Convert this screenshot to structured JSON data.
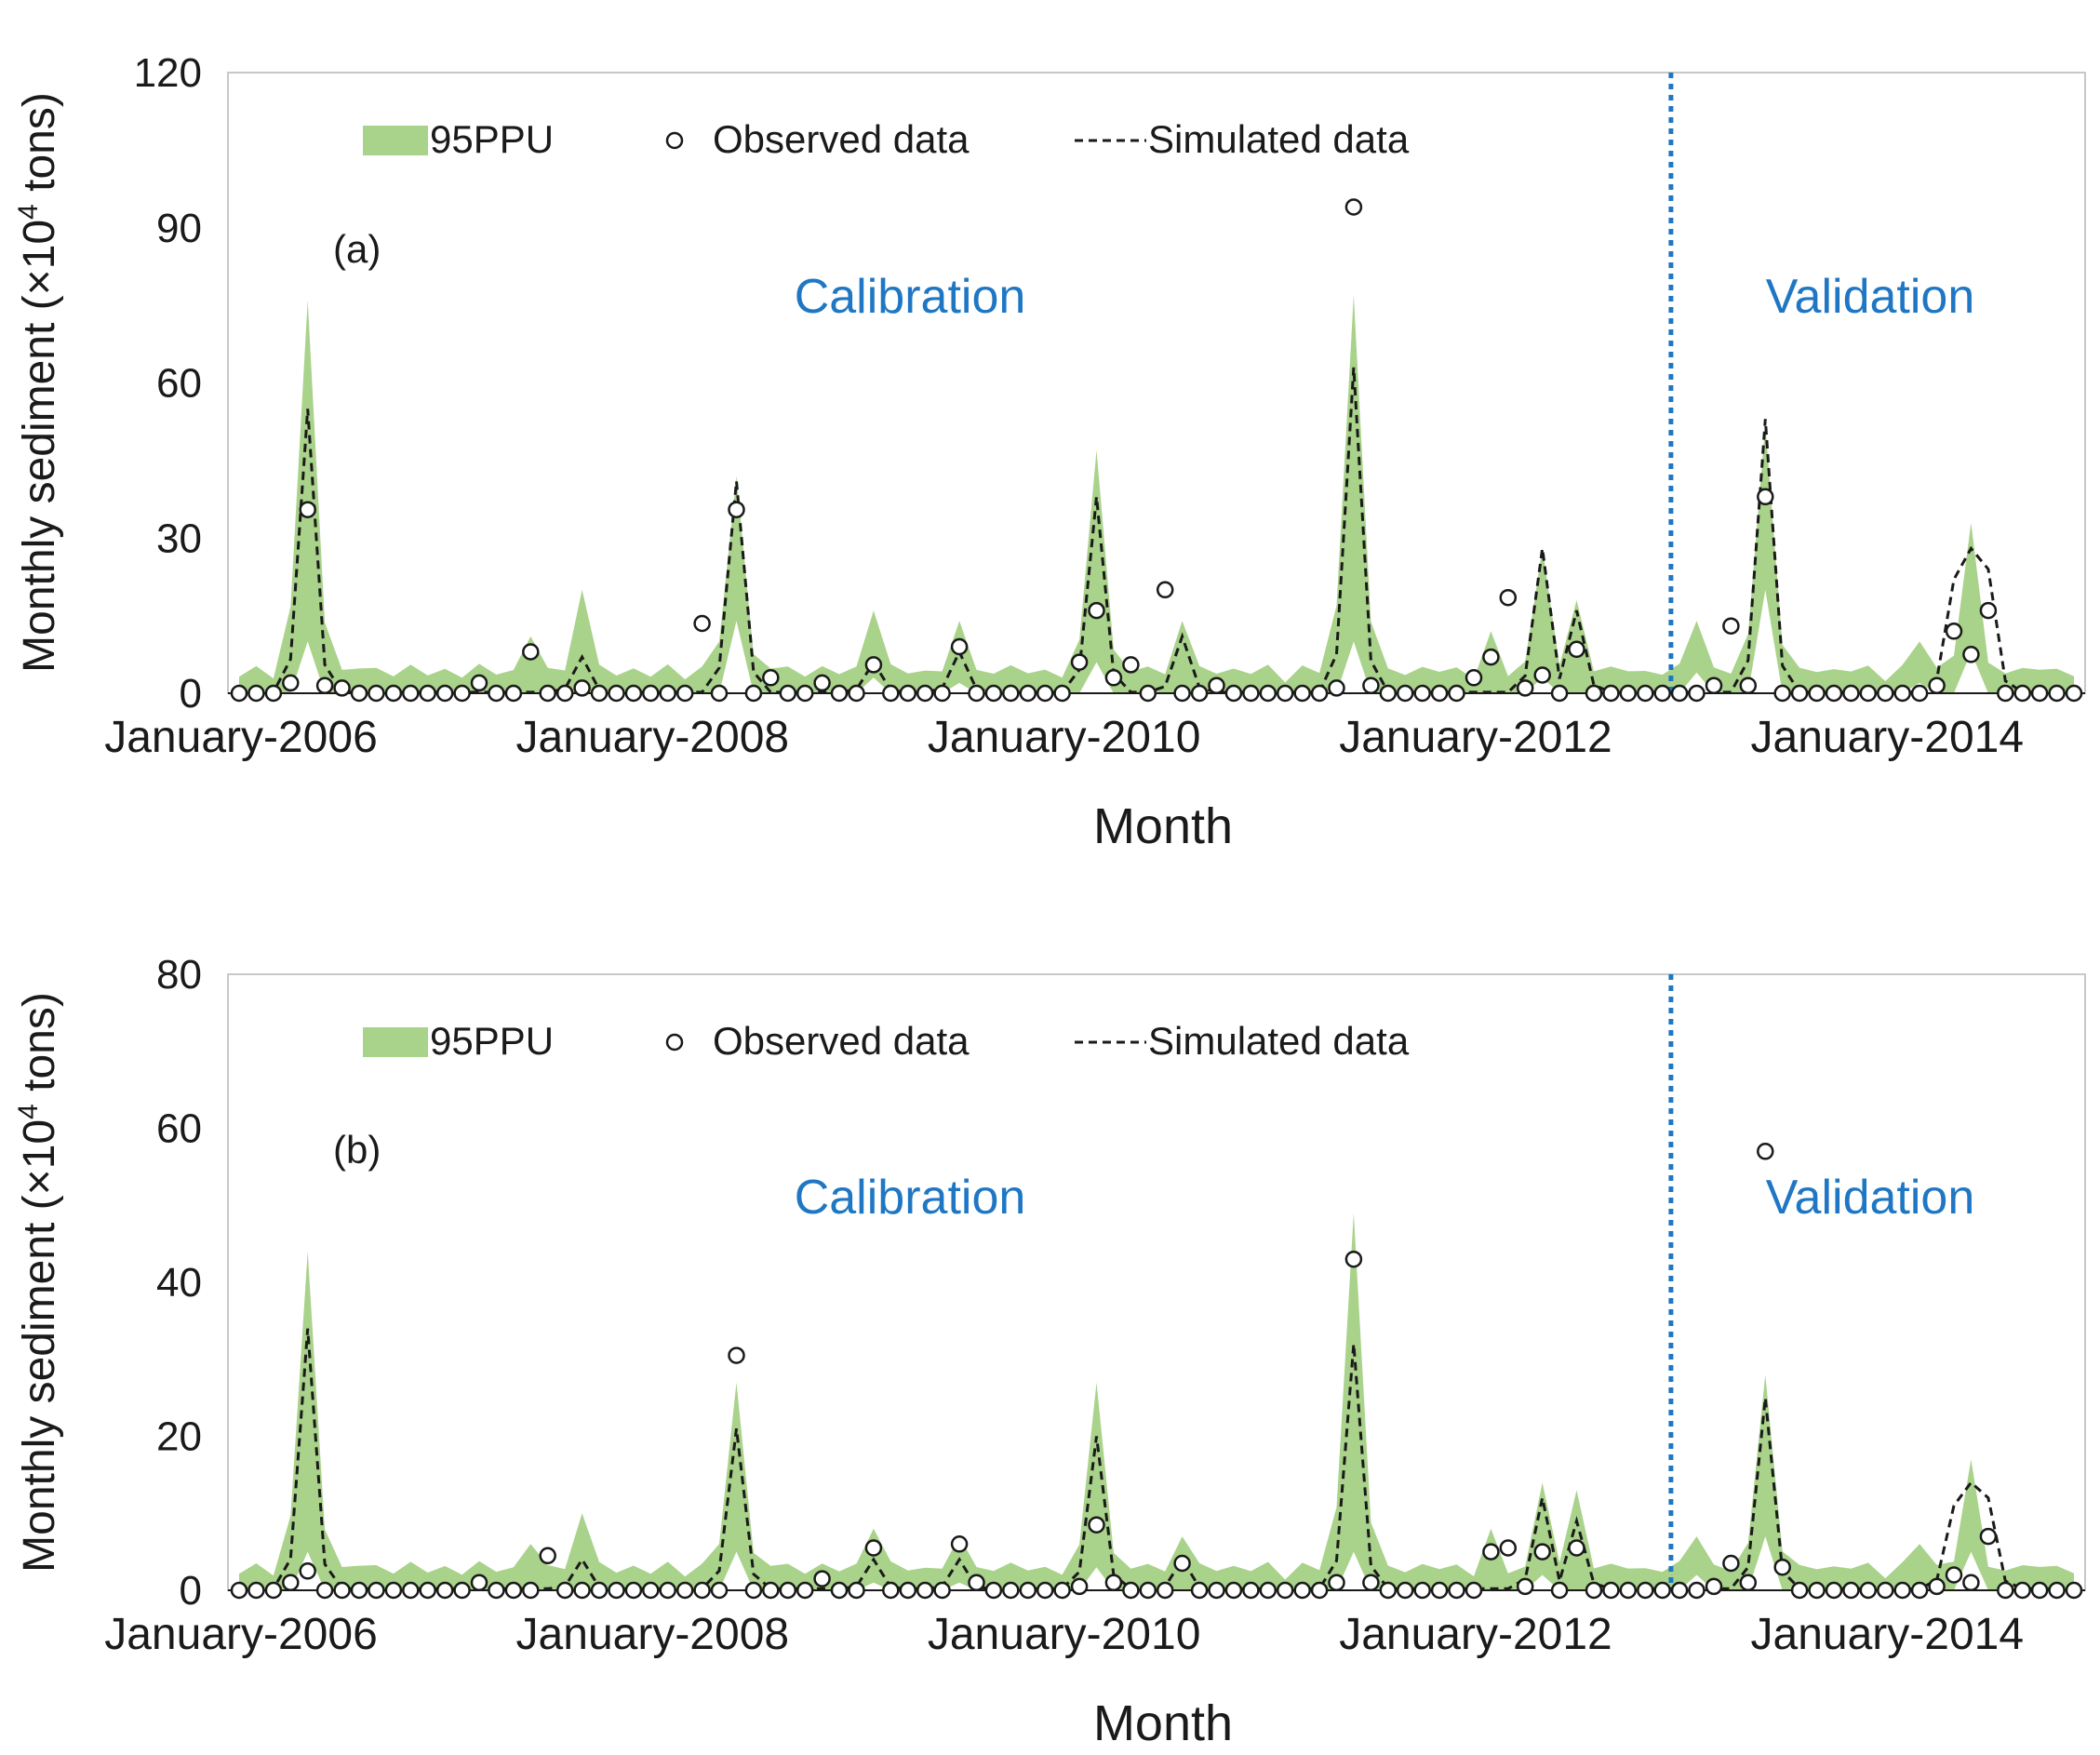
{
  "figure": {
    "x_start_label_year": 2006,
    "panel_label_a": "(a)",
    "panel_label_b": "(b)"
  },
  "colors": {
    "band": "#a9d28a",
    "sim_line": "#1a1a1a",
    "divider": "#1f77c4",
    "period_text": "#1f77c4",
    "text": "#1a1a1a"
  },
  "chart_data": [
    {
      "type": "line",
      "panel": "(a)",
      "title": "",
      "xlabel": "Month",
      "ylabel_prefix": "Monthly sediment (",
      "ylabel_unit": "×10",
      "ylabel_exp": "4",
      "ylabel_suffix": " tons)",
      "ylim": [
        0,
        120
      ],
      "yticks": [
        0,
        30,
        60,
        90,
        120
      ],
      "xtick_labels": [
        "January-2006",
        "January-2008",
        "January-2010",
        "January-2012",
        "January-2014"
      ],
      "xtick_months": [
        0,
        24,
        48,
        72,
        96
      ],
      "n_months": 108,
      "split_month": 83.5,
      "period_labels": [
        "Calibration",
        "Validation"
      ],
      "legend": [
        "95PPU",
        "Observed data",
        "Simulated data"
      ],
      "series": [
        {
          "name": "95PPU",
          "kind": "band",
          "peaks": [
            [
              4,
              76,
              10
            ],
            [
              17,
              11,
              0
            ],
            [
              20,
              20,
              0
            ],
            [
              28,
              10,
              0
            ],
            [
              29,
              42,
              14
            ],
            [
              37,
              16,
              3
            ],
            [
              42,
              14,
              2
            ],
            [
              50,
              47,
              6
            ],
            [
              55,
              14,
              0
            ],
            [
              65,
              77,
              10
            ],
            [
              73,
              12,
              0
            ],
            [
              76,
              28,
              3
            ],
            [
              78,
              18,
              0
            ],
            [
              85,
              14,
              4
            ],
            [
              89,
              52,
              20
            ],
            [
              98,
              10,
              2
            ],
            [
              101,
              33,
              8
            ]
          ]
        },
        {
          "name": "Simulated data",
          "kind": "line",
          "peaks": [
            [
              4,
              55
            ],
            [
              20,
              7
            ],
            [
              29,
              41
            ],
            [
              37,
              6
            ],
            [
              42,
              8
            ],
            [
              50,
              38
            ],
            [
              55,
              11
            ],
            [
              65,
              63
            ],
            [
              76,
              28
            ],
            [
              78,
              16
            ],
            [
              89,
              53
            ],
            [
              100,
              22
            ],
            [
              101,
              28
            ],
            [
              102,
              24
            ]
          ]
        },
        {
          "name": "Observed data",
          "kind": "points",
          "nonzero": [
            [
              3,
              2
            ],
            [
              4,
              35.5
            ],
            [
              5,
              1.5
            ],
            [
              6,
              1
            ],
            [
              14,
              2
            ],
            [
              17,
              8
            ],
            [
              20,
              1
            ],
            [
              27,
              13.5
            ],
            [
              29,
              35.5
            ],
            [
              31,
              3
            ],
            [
              34,
              2
            ],
            [
              37,
              5.5
            ],
            [
              42,
              9
            ],
            [
              49,
              6
            ],
            [
              50,
              16
            ],
            [
              51,
              3
            ],
            [
              52,
              5.5
            ],
            [
              54,
              20
            ],
            [
              57,
              1.5
            ],
            [
              64,
              1
            ],
            [
              65,
              94
            ],
            [
              66,
              1.5
            ],
            [
              72,
              3
            ],
            [
              73,
              7
            ],
            [
              74,
              18.5
            ],
            [
              75,
              1
            ],
            [
              76,
              3.5
            ],
            [
              78,
              8.5
            ],
            [
              86,
              1.5
            ],
            [
              87,
              13
            ],
            [
              88,
              1.5
            ],
            [
              89,
              38
            ],
            [
              99,
              1.5
            ],
            [
              100,
              12
            ],
            [
              101,
              7.5
            ],
            [
              102,
              16
            ]
          ]
        }
      ]
    },
    {
      "type": "line",
      "panel": "(b)",
      "title": "",
      "xlabel": "Month",
      "ylabel_prefix": "Monthly sediment (",
      "ylabel_unit": "×10",
      "ylabel_exp": "4",
      "ylabel_suffix": " tons)",
      "ylim": [
        0,
        80
      ],
      "yticks": [
        0,
        20,
        40,
        60,
        80
      ],
      "xtick_labels": [
        "January-2006",
        "January-2008",
        "January-2010",
        "January-2012",
        "January-2014"
      ],
      "xtick_months": [
        0,
        24,
        48,
        72,
        96
      ],
      "n_months": 108,
      "split_month": 83.5,
      "period_labels": [
        "Calibration",
        "Validation"
      ],
      "legend": [
        "95PPU",
        "Observed data",
        "Simulated data"
      ],
      "series": [
        {
          "name": "95PPU",
          "kind": "band",
          "peaks": [
            [
              4,
              44,
              5
            ],
            [
              17,
              6,
              0
            ],
            [
              20,
              10,
              0
            ],
            [
              28,
              6,
              0
            ],
            [
              29,
              27,
              5
            ],
            [
              37,
              8,
              1
            ],
            [
              42,
              7,
              1
            ],
            [
              50,
              27,
              3
            ],
            [
              55,
              7,
              0
            ],
            [
              65,
              49,
              5
            ],
            [
              73,
              8,
              0
            ],
            [
              76,
              14,
              2
            ],
            [
              78,
              13,
              0
            ],
            [
              85,
              7,
              2
            ],
            [
              89,
              28,
              7
            ],
            [
              98,
              6,
              1
            ],
            [
              101,
              17,
              5
            ]
          ]
        },
        {
          "name": "Simulated data",
          "kind": "line",
          "peaks": [
            [
              4,
              34
            ],
            [
              20,
              4
            ],
            [
              29,
              21
            ],
            [
              37,
              4
            ],
            [
              42,
              4
            ],
            [
              50,
              20
            ],
            [
              55,
              4
            ],
            [
              65,
              32
            ],
            [
              76,
              12
            ],
            [
              78,
              9
            ],
            [
              89,
              25
            ],
            [
              100,
              11
            ],
            [
              101,
              14
            ],
            [
              102,
              12
            ]
          ]
        },
        {
          "name": "Observed data",
          "kind": "points",
          "nonzero": [
            [
              3,
              1
            ],
            [
              4,
              2.5
            ],
            [
              14,
              1
            ],
            [
              18,
              4.5
            ],
            [
              29,
              30.5
            ],
            [
              34,
              1.5
            ],
            [
              37,
              5.5
            ],
            [
              42,
              6
            ],
            [
              43,
              1
            ],
            [
              49,
              0.5
            ],
            [
              50,
              8.5
            ],
            [
              51,
              1
            ],
            [
              55,
              3.5
            ],
            [
              64,
              1
            ],
            [
              65,
              43
            ],
            [
              66,
              1
            ],
            [
              73,
              5
            ],
            [
              74,
              5.5
            ],
            [
              75,
              0.5
            ],
            [
              76,
              5
            ],
            [
              78,
              5.5
            ],
            [
              86,
              0.5
            ],
            [
              87,
              3.5
            ],
            [
              88,
              1
            ],
            [
              89,
              57
            ],
            [
              90,
              3
            ],
            [
              99,
              0.5
            ],
            [
              100,
              2
            ],
            [
              101,
              1
            ],
            [
              102,
              7
            ]
          ]
        }
      ]
    }
  ]
}
